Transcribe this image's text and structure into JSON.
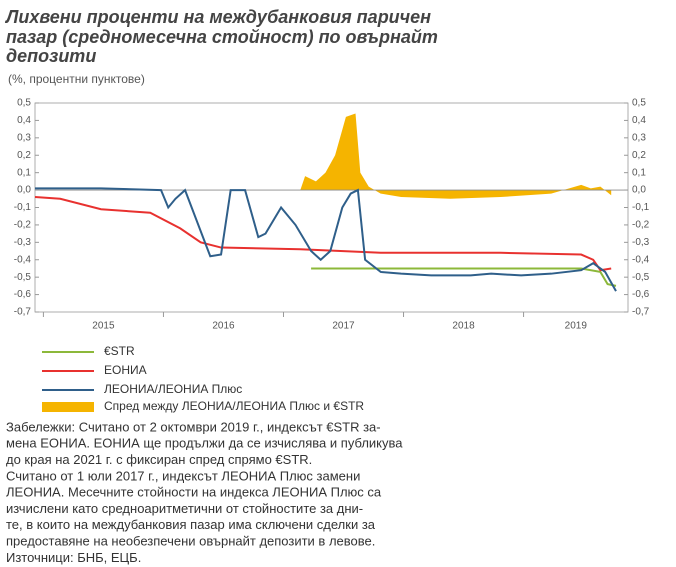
{
  "chart_data": {
    "type": "line",
    "title": [
      "Лихвени проценти на междубанковия паричен",
      "пазар (средномесечна стойност) по овърнайт",
      "депозити"
    ],
    "subtitle": "(%, процентни пунктове)",
    "xlim": [
      2014.93,
      2019.87
    ],
    "xticks": [
      {
        "value": 2015,
        "label": "2015"
      },
      {
        "value": 2016,
        "label": "2016"
      },
      {
        "value": 2017,
        "label": "2017"
      },
      {
        "value": 2018,
        "label": "2018"
      },
      {
        "value": 2019,
        "label": "2019"
      }
    ],
    "ylim": [
      -0.7,
      0.5
    ],
    "yticks": [
      {
        "value": 0.5,
        "label": "0,5"
      },
      {
        "value": 0.4,
        "label": "0,4"
      },
      {
        "value": 0.3,
        "label": "0,3"
      },
      {
        "value": 0.2,
        "label": "0,2"
      },
      {
        "value": 0.1,
        "label": "0,1"
      },
      {
        "value": 0,
        "label": "0,0"
      },
      {
        "value": -0.1,
        "label": "-0,1"
      },
      {
        "value": -0.2,
        "label": "-0,2"
      },
      {
        "value": -0.3,
        "label": "-0,3"
      },
      {
        "value": -0.4,
        "label": "-0,4"
      },
      {
        "value": -0.5,
        "label": "-0,5"
      },
      {
        "value": -0.6,
        "label": "-0,6"
      },
      {
        "value": -0.7,
        "label": "-0,7"
      }
    ],
    "y2lim": [
      -0.7,
      0.5
    ],
    "y2ticks": [
      {
        "value": 0.5,
        "label": "0,5"
      },
      {
        "value": 0.4,
        "label": "0,4"
      },
      {
        "value": 0.3,
        "label": "0,3"
      },
      {
        "value": 0.2,
        "label": "0,2"
      },
      {
        "value": 0.1,
        "label": "0,1"
      },
      {
        "value": 0,
        "label": "0,0"
      },
      {
        "value": -0.1,
        "label": "-0,1"
      },
      {
        "value": -0.2,
        "label": "-0,2"
      },
      {
        "value": -0.3,
        "label": "-0,3"
      },
      {
        "value": -0.4,
        "label": "-0,4"
      },
      {
        "value": -0.5,
        "label": "-0,5"
      },
      {
        "value": -0.6,
        "label": "-0,6"
      },
      {
        "value": -0.7,
        "label": "-0,7"
      }
    ],
    "series": [
      {
        "name": "€STR",
        "type": "line",
        "color": "#8cb83a",
        "x": [
          2017.23,
          2017.81,
          2018.39,
          2018.98,
          2019.48,
          2019.64,
          2019.7,
          2019.77
        ],
        "values": [
          -0.45,
          -0.45,
          -0.45,
          -0.45,
          -0.45,
          -0.47,
          -0.54,
          -0.55
        ]
      },
      {
        "name": "ЕОНИА",
        "type": "line",
        "color": "#e8312f",
        "x": [
          2014.93,
          2015.14,
          2015.48,
          2015.89,
          2016.14,
          2016.31,
          2016.48,
          2017.14,
          2017.81,
          2018.81,
          2019.48,
          2019.58,
          2019.64,
          2019.73
        ],
        "values": [
          -0.04,
          -0.05,
          -0.11,
          -0.13,
          -0.22,
          -0.3,
          -0.33,
          -0.34,
          -0.36,
          -0.36,
          -0.37,
          -0.4,
          -0.46,
          -0.45
        ]
      },
      {
        "name": "ЛЕОНИА/ЛЕОНИА Плюс",
        "type": "line",
        "color": "#2f5f8a",
        "x": [
          2014.93,
          2015.48,
          2015.98,
          2016.04,
          2016.1,
          2016.18,
          2016.39,
          2016.48,
          2016.56,
          2016.68,
          2016.79,
          2016.85,
          2016.98,
          2017.1,
          2017.23,
          2017.31,
          2017.39,
          2017.49,
          2017.56,
          2017.62,
          2017.68,
          2017.81,
          2017.98,
          2018.23,
          2018.56,
          2018.73,
          2018.98,
          2019.23,
          2019.48,
          2019.58,
          2019.68,
          2019.77
        ],
        "values": [
          0.01,
          0.01,
          0,
          -0.1,
          -0.05,
          0,
          -0.38,
          -0.37,
          0,
          0,
          -0.27,
          -0.25,
          -0.1,
          -0.2,
          -0.35,
          -0.4,
          -0.35,
          -0.1,
          -0.02,
          0,
          -0.4,
          -0.47,
          -0.48,
          -0.49,
          -0.49,
          -0.48,
          -0.49,
          -0.48,
          -0.46,
          -0.42,
          -0.47,
          -0.58
        ]
      },
      {
        "name": "Спред между ЛЕОНИА/ЛЕОНИА Плюс и €STR",
        "type": "area",
        "color": "#f5b400",
        "x": [
          2017.14,
          2017.18,
          2017.27,
          2017.35,
          2017.43,
          2017.52,
          2017.6,
          2017.64,
          2017.71,
          2017.81,
          2017.98,
          2018.39,
          2018.81,
          2019.23,
          2019.48,
          2019.56,
          2019.64,
          2019.73
        ],
        "values": [
          0,
          0.08,
          0.05,
          0.1,
          0.2,
          0.42,
          0.44,
          0.1,
          0.02,
          -0.02,
          -0.04,
          -0.05,
          -0.04,
          -0.02,
          0.03,
          0.01,
          0.02,
          -0.03
        ]
      }
    ],
    "notes": [
      "Забележки: Считано от 2 октомври 2019 г., индексът €STR за-",
      "мена ЕОНИА. ЕОНИА ще продължи да се изчислява и публикува",
      "до края на 2021 г. с фиксиран спред спрямо €STR.",
      "Считано от 1 юли 2017 г., индексът ЛЕОНИА Плюс замени",
      "ЛЕОНИА. Месечните стойности на индекса ЛЕОНИА Плюс са",
      "изчислени като средноаритметични от стойностите за дни-",
      "те, в които на междубанковия пазар има сключени сделки за",
      "предоставяне на необезпечени овърнайт депозити в левове."
    ],
    "source": "Източници: БНБ, ЕЦБ."
  }
}
